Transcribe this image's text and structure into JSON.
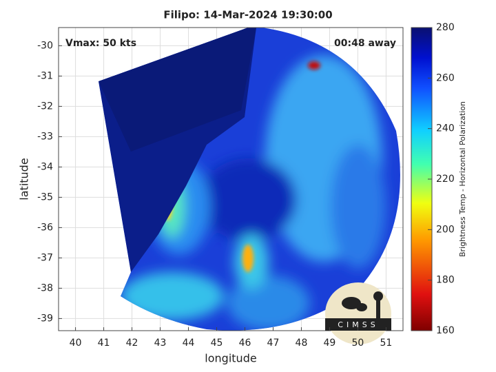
{
  "chart_data": {
    "type": "image",
    "title": "Filipo: 14-Mar-2024 19:30:00",
    "annotations": [
      "Vmax: 50 kts",
      "00:48 away"
    ],
    "xlabel": "longitude",
    "ylabel": "latitude",
    "xlim": [
      39.4,
      51.6
    ],
    "xticks": [
      40,
      41,
      42,
      43,
      44,
      45,
      46,
      47,
      48,
      49,
      50,
      51
    ],
    "ylim": [
      -39.4,
      -29.4
    ],
    "yticks": [
      -30,
      -31,
      -32,
      -33,
      -34,
      -35,
      -36,
      -37,
      -38,
      -39
    ],
    "grid": true,
    "colorbar": {
      "label": "Brightness Temp - Horizontal Polarization",
      "clim": [
        160,
        280
      ],
      "ticks": [
        160,
        180,
        200,
        220,
        240,
        260,
        280
      ]
    },
    "logo": "CIMSS"
  }
}
